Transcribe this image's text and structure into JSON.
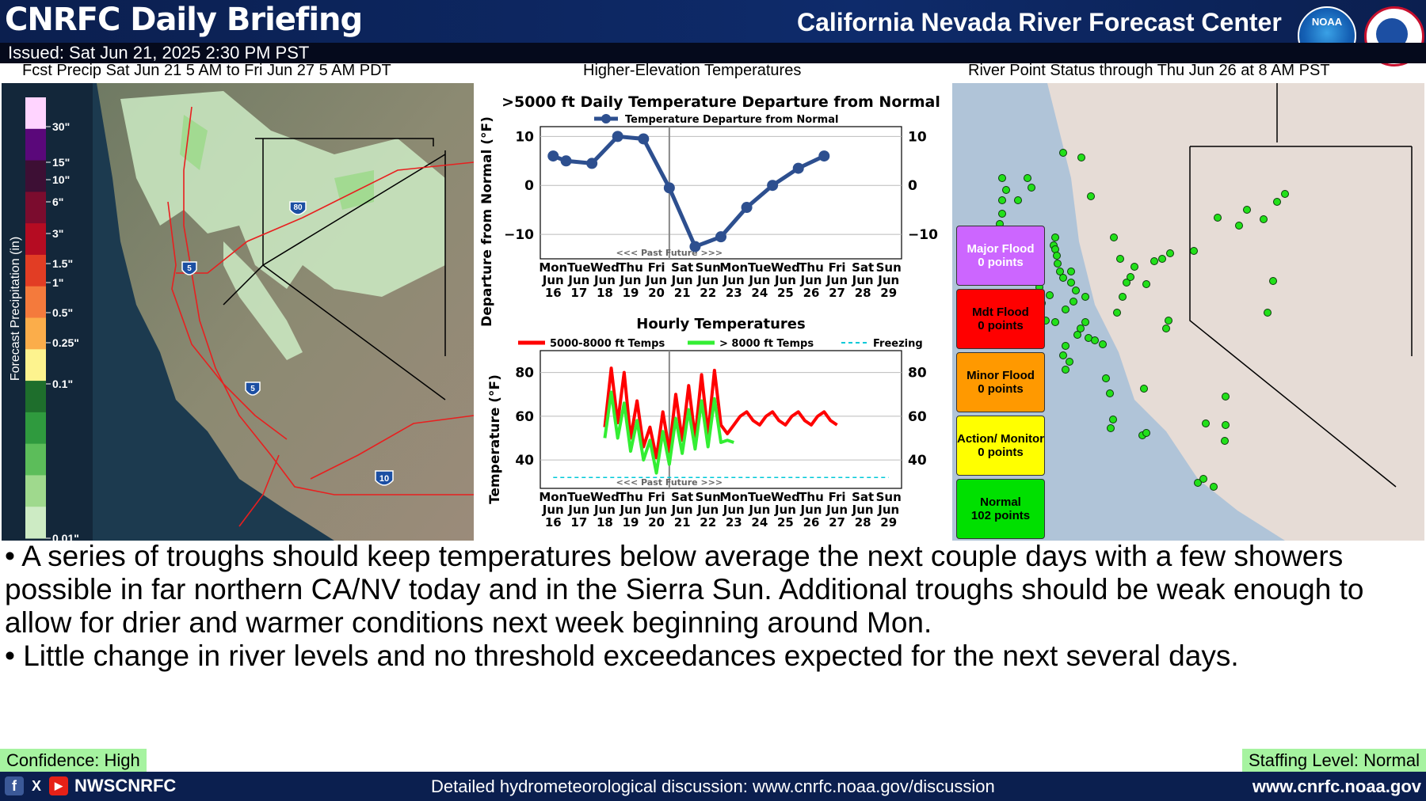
{
  "header": {
    "title": "CNRFC Daily Briefing",
    "center_title": "California Nevada River Forecast Center",
    "issued": "Issued: Sat Jun 21, 2025 2:30 PM PST",
    "noaa_logo_text": "NOAA",
    "nws_logo_text": "NATIONAL WEATHER SERVICE"
  },
  "panels": {
    "precip_title": "Fcst Precip Sat Jun 21 5 AM to Fri Jun 27 5 AM PDT",
    "temps_title": "Higher-Elevation Temperatures",
    "river_title": "River Point Status through Thu Jun 26 at 8 AM PST"
  },
  "precip_legend": {
    "axis_label": "Forecast Precipitation (in)",
    "ticks": [
      "30\"",
      "15\"",
      "10\"",
      "6\"",
      "3\"",
      "1.5\"",
      "1\"",
      "0.5\"",
      "0.25\"",
      "0.1\"",
      "0.01\""
    ],
    "colors": [
      "#ffd4ff",
      "#5a087a",
      "#3d0f34",
      "#7b0c2e",
      "#b50c22",
      "#e23d24",
      "#f47a3c",
      "#fbad4a",
      "#fdf38e",
      "#1e6e2c",
      "#2f9a3e",
      "#5cbd5a",
      "#9fd98d",
      "#cdebc4"
    ]
  },
  "highway_labels": [
    "80",
    "5",
    "5",
    "10"
  ],
  "chart_data": [
    {
      "type": "line",
      "title": ">5000 ft Daily Temperature Departure from Normal",
      "ylabel": "Departure from Normal (°F)",
      "legend": [
        "Temperature Departure from Normal"
      ],
      "past_future_label": "<<< Past Future >>>",
      "x_days": [
        "Mon Jun 16",
        "Tue Jun 17",
        "Wed Jun 18",
        "Thu Jun 19",
        "Fri Jun 20",
        "Sat Jun 21",
        "Sun Jun 22",
        "Mon Jun 23",
        "Tue Jun 24",
        "Wed Jun 25",
        "Thu Jun 26",
        "Fri Jun 27",
        "Sat Jun 28",
        "Sun Jun 29"
      ],
      "x_day_names": [
        "Mon",
        "Tue",
        "Wed",
        "Thu",
        "Fri",
        "Sat",
        "Sun",
        "Mon",
        "Tue",
        "Wed",
        "Thu",
        "Fri",
        "Sat",
        "Sun"
      ],
      "x_month": "Jun",
      "x_dates": [
        "16",
        "17",
        "18",
        "19",
        "20",
        "21",
        "22",
        "23",
        "24",
        "25",
        "26",
        "27",
        "28",
        "29"
      ],
      "series": [
        {
          "name": "Temperature Departure from Normal",
          "x": [
            16,
            16.5,
            17.5,
            18.5,
            19.5,
            20.5,
            21.5,
            22.5,
            23.5,
            24.5,
            25.5,
            26.5
          ],
          "values": [
            6,
            5,
            4.5,
            10,
            9.5,
            -0.5,
            -12.5,
            -10.5,
            -4.5,
            0,
            3.5,
            6
          ]
        }
      ],
      "ylim": [
        -15,
        12
      ],
      "yticks": [
        -10,
        0,
        10
      ],
      "series_color": "#2d4f8f"
    },
    {
      "type": "line",
      "title": "Hourly Temperatures",
      "ylabel": "Temperature (°F)",
      "legend": [
        "5000-8000 ft Temps",
        "> 8000 ft Temps",
        "Freezing"
      ],
      "past_future_label": "<<< Past Future >>>",
      "series": [
        {
          "name": "5000-8000 ft Temps",
          "x": [
            18,
            18.25,
            18.5,
            18.75,
            19,
            19.25,
            19.5,
            19.75,
            20,
            20.25,
            20.5,
            20.75,
            21,
            21.25,
            21.5,
            21.75,
            22,
            22.25,
            22.5,
            22.75,
            23,
            23.25,
            23.5,
            23.75,
            24,
            24.25,
            24.5,
            24.75,
            25,
            25.25,
            25.5,
            25.75,
            26,
            26.25,
            26.5,
            26.75,
            27
          ],
          "values": [
            55,
            82,
            57,
            80,
            50,
            67,
            46,
            55,
            41,
            62,
            44,
            70,
            49,
            74,
            50,
            79,
            52,
            81,
            56,
            52,
            56,
            60,
            62,
            58,
            56,
            60,
            62,
            58,
            56,
            60,
            62,
            58,
            56,
            60,
            62,
            58,
            56
          ]
        },
        {
          "name": "> 8000 ft Temps",
          "x": [
            18,
            18.25,
            18.5,
            18.75,
            19,
            19.25,
            19.5,
            19.75,
            20,
            20.25,
            20.5,
            20.75,
            21,
            21.25,
            21.5,
            21.75,
            22,
            22.25,
            22.5,
            22.75,
            23
          ],
          "values": [
            50,
            71,
            50,
            66,
            44,
            58,
            40,
            49,
            34,
            53,
            38,
            59,
            43,
            63,
            45,
            67,
            46,
            68,
            48,
            49,
            48
          ]
        },
        {
          "name": "Freezing",
          "x": [
            16,
            29
          ],
          "values": [
            32,
            32
          ]
        }
      ],
      "ylim": [
        27,
        90
      ],
      "yticks": [
        40,
        60,
        80
      ],
      "series_colors": [
        "#ff0000",
        "#33ee33",
        "#00c8d8"
      ]
    }
  ],
  "river_status": [
    {
      "label": "Major Flood",
      "count": "0 points",
      "color": "#cc66ff",
      "text_color": "#ffffff"
    },
    {
      "label": "Mdt Flood",
      "count": "0 points",
      "color": "#ff0000",
      "text_color": "#000000"
    },
    {
      "label": "Minor Flood",
      "count": "0 points",
      "color": "#ff9900",
      "text_color": "#000000"
    },
    {
      "label": "Action/ Monitor",
      "count": "0 points",
      "color": "#ffff00",
      "text_color": "#000000"
    },
    {
      "label": "Normal",
      "count": "102 points",
      "color": "#00e000",
      "text_color": "#000000"
    }
  ],
  "bullets": [
    "• A series of troughs should keep temperatures below average the next couple days with a few showers possible in far northern CA/NV today and in the Sierra Sun.  Additional troughs should be weak enough to allow for drier and warmer conditions next week beginning around Mon.",
    "• Little change in river levels and no threshold exceedances expected for the next several days."
  ],
  "confidence": "Confidence: High",
  "staffing": "Staffing Level: Normal",
  "footer": {
    "handle": "NWSCNRFC",
    "discussion": "Detailed hydrometeorological discussion: www.cnrfc.noaa.gov/discussion",
    "site": "www.cnrfc.noaa.gov",
    "facebook_icon": "f",
    "x_icon": "X",
    "youtube_icon": "▶"
  }
}
